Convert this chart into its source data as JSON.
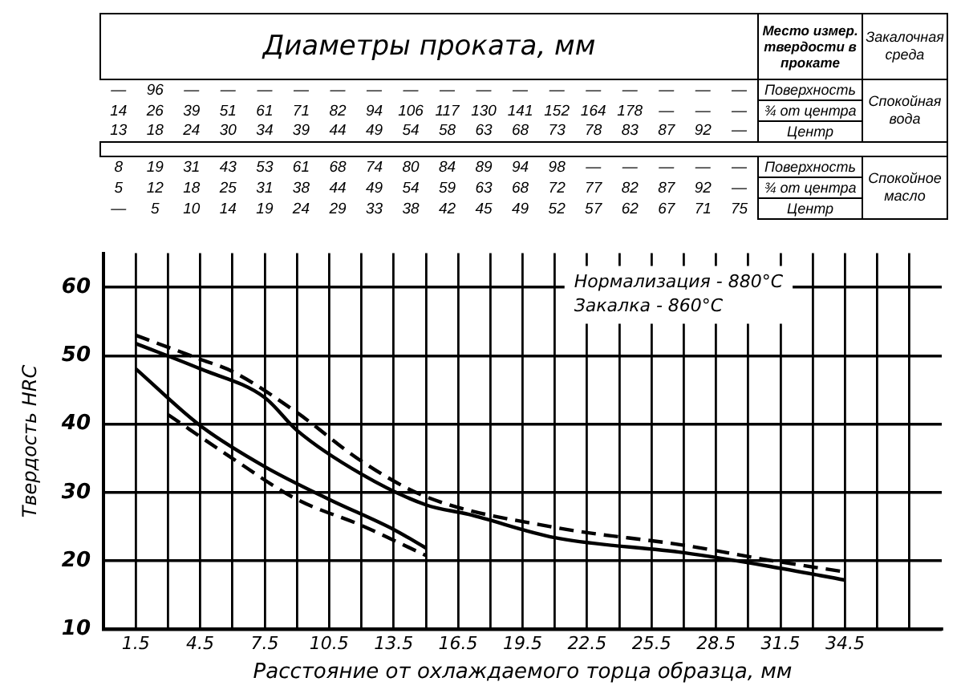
{
  "chart_data": {
    "type": "line",
    "title": "Диаметры проката, мм",
    "xlabel": "Расстояние от охлаждаемого торца образца, мм",
    "ylabel": "Твердость HRC",
    "annotations": [
      "Место измер. твердости в прокате",
      "Закалочная среда",
      "— 96 — — — — — — — — — — — — — — — —",
      "Поверхность",
      "14 26 39 51 61 71 82 94 106 117 130 141 152 164 178 — — —",
      "¾ от центра",
      "13 18 24 30 34 39 44 49 54 58 63 68 73 78 83 87 92 —",
      "Центр",
      "8 19 31 43 53 61 68 74 80 84 89 94 98 — — — — —",
      "Поверхность",
      "5 12 18 25 31 38 44 49 54 59 63 68 72 77 82 87 92 —",
      "¾ от центра",
      "— 5 10 14 19 24 29 33 38 42 45 49 52 57 62 67 71 75",
      "Центр",
      "Спокойная вода",
      "Спокойное масло",
      "Нормализация - 880°С",
      "Закалка - 860°С"
    ],
    "xlim": [
      0,
      39
    ],
    "ylim": [
      10,
      65
    ],
    "xticks": [
      1.5,
      {
        "value": 3,
        "label": null
      },
      4.5,
      {
        "value": 6,
        "label": null
      },
      7.5,
      {
        "value": 9,
        "label": null
      },
      10.5,
      {
        "value": 12,
        "label": null
      },
      13.5,
      {
        "value": 15,
        "label": null
      },
      16.5,
      {
        "value": 18,
        "label": null
      },
      19.5,
      {
        "value": 21,
        "label": null
      },
      22.5,
      {
        "value": 24,
        "label": null
      },
      25.5,
      {
        "value": 27,
        "label": null
      },
      28.5,
      {
        "value": 30,
        "label": null
      },
      31.5,
      {
        "value": 33,
        "label": null
      },
      34.5,
      {
        "value": 36,
        "label": null
      },
      {
        "value": 37.5,
        "label": null
      }
    ],
    "yticks": [
      10,
      20,
      30,
      40,
      50,
      60
    ],
    "grid": true,
    "legend": false,
    "marker": "none",
    "series": [
      {
        "color": "#000000",
        "line_style": "solid",
        "x": [
          1.5,
          4.5,
          7.5,
          9,
          12,
          15,
          17,
          21,
          27,
          31,
          34.5
        ],
        "values": [
          51.8,
          48.1,
          43.9,
          39.1,
          32.7,
          28.2,
          26.8,
          23.4,
          21.2,
          19.2,
          17.2
        ]
      },
      {
        "color": "#000000",
        "line_style": "dashed",
        "x": [
          1.5,
          4.5,
          6,
          9,
          12,
          15,
          21,
          27,
          31,
          34.5
        ],
        "values": [
          53,
          49.5,
          47.7,
          41.7,
          34.6,
          29.4,
          24.9,
          22.3,
          20.1,
          18.4
        ]
      },
      {
        "color": "#000000",
        "line_style": "solid",
        "x": [
          1.5,
          4.5,
          7.5,
          10.5,
          13.5,
          15
        ],
        "values": [
          48.1,
          39.8,
          33.8,
          29,
          24.6,
          21.9
        ]
      },
      {
        "color": "#000000",
        "line_style": "dashed",
        "x": [
          3,
          6,
          9,
          12,
          15
        ],
        "values": [
          41.4,
          35,
          29,
          25.2,
          20.8
        ]
      }
    ]
  }
}
